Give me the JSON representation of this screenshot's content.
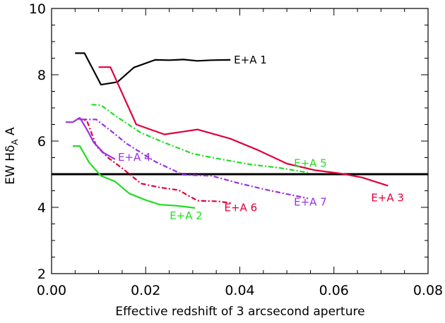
{
  "chart_data": {
    "type": "line",
    "xlabel": "Effective redshift of 3 arcsecond aperture",
    "ylabel": {
      "prefix": "EW H",
      "greek": "δ",
      "subscript": "A",
      "suffix": " A"
    },
    "xlim": [
      0.0,
      0.08
    ],
    "ylim": [
      2,
      10
    ],
    "xticks": [
      "0.00",
      "0.02",
      "0.04",
      "0.06",
      "0.08"
    ],
    "yticks": [
      "2",
      "4",
      "6",
      "8",
      "10"
    ],
    "grid": false,
    "reference_line": {
      "y": 5.0,
      "color": "#000000"
    },
    "colors": {
      "black": "#000000",
      "red": "#e0003c",
      "green": "#22dd22",
      "purple": "#9a30e8"
    },
    "series": [
      {
        "name": "E+A 1",
        "color": "#000000",
        "dash": "solid",
        "x": [
          0.005,
          0.007,
          0.0105,
          0.014,
          0.0175,
          0.022,
          0.025,
          0.028,
          0.031,
          0.034,
          0.038
        ],
        "y": [
          8.65,
          8.65,
          7.7,
          7.78,
          8.22,
          8.45,
          8.44,
          8.46,
          8.42,
          8.44,
          8.45
        ]
      },
      {
        "name": "E+A 3",
        "color": "#e0003c",
        "dash": "solid",
        "x": [
          0.01,
          0.0125,
          0.018,
          0.024,
          0.031,
          0.038,
          0.044,
          0.05,
          0.056,
          0.0615,
          0.066,
          0.0715
        ],
        "y": [
          8.23,
          8.23,
          6.5,
          6.2,
          6.35,
          6.07,
          5.72,
          5.32,
          5.12,
          5.02,
          4.9,
          4.65
        ]
      },
      {
        "name": "E+A 5",
        "color": "#22dd22",
        "dash": "dashdot",
        "x": [
          0.0085,
          0.0105,
          0.014,
          0.019,
          0.024,
          0.03,
          0.036,
          0.042,
          0.048,
          0.0545
        ],
        "y": [
          7.1,
          7.08,
          6.72,
          6.25,
          5.95,
          5.62,
          5.45,
          5.3,
          5.2,
          5.05
        ]
      },
      {
        "name": "E+A 7",
        "color": "#9a30e8",
        "dash": "dashdot",
        "x": [
          0.0065,
          0.0095,
          0.0125,
          0.016,
          0.022,
          0.028,
          0.034,
          0.04,
          0.046,
          0.0545
        ],
        "y": [
          6.65,
          6.65,
          6.32,
          5.92,
          5.38,
          4.98,
          4.95,
          4.72,
          4.52,
          4.27
        ]
      },
      {
        "name": "E+A 6",
        "color": "#e0003c",
        "dash": "dashdot",
        "x": [
          0.0055,
          0.0075,
          0.0095,
          0.012,
          0.015,
          0.019,
          0.023,
          0.027,
          0.031,
          0.0355,
          0.0385
        ],
        "y": [
          6.68,
          6.62,
          5.85,
          5.5,
          5.18,
          4.72,
          4.6,
          4.52,
          4.2,
          4.18,
          4.12
        ]
      },
      {
        "name": "E+A 4",
        "color": "#9a30e8",
        "dash": "solid",
        "x": [
          0.003,
          0.0045,
          0.006,
          0.0075,
          0.009,
          0.011,
          0.0135
        ],
        "y": [
          6.57,
          6.57,
          6.7,
          6.35,
          5.95,
          5.65,
          5.45
        ]
      },
      {
        "name": "E+A 2",
        "color": "#22dd22",
        "dash": "solid",
        "x": [
          0.0045,
          0.006,
          0.008,
          0.0105,
          0.0135,
          0.0165,
          0.02,
          0.023,
          0.0265,
          0.0305
        ],
        "y": [
          5.85,
          5.85,
          5.35,
          4.95,
          4.78,
          4.42,
          4.22,
          4.08,
          4.05,
          3.98
        ]
      }
    ]
  }
}
